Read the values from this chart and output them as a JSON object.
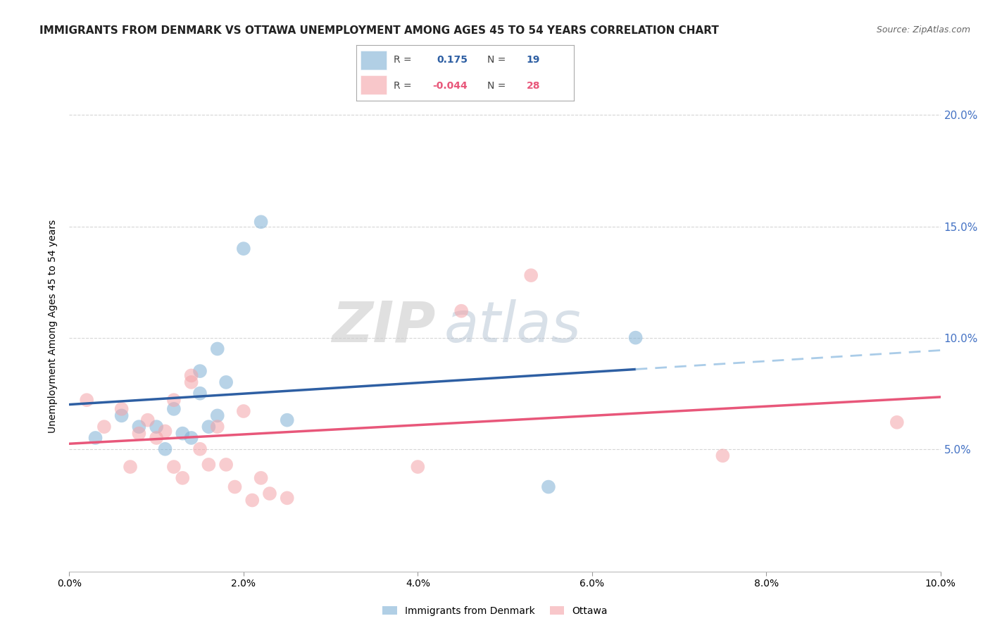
{
  "title": "IMMIGRANTS FROM DENMARK VS OTTAWA UNEMPLOYMENT AMONG AGES 45 TO 54 YEARS CORRELATION CHART",
  "source": "Source: ZipAtlas.com",
  "ylabel": "Unemployment Among Ages 45 to 54 years",
  "xlim": [
    0.0,
    0.1
  ],
  "ylim": [
    -0.005,
    0.215
  ],
  "yticks": [
    0.05,
    0.1,
    0.15,
    0.2
  ],
  "ytick_labels": [
    "5.0%",
    "10.0%",
    "15.0%",
    "20.0%"
  ],
  "xticks": [
    0.0,
    0.02,
    0.04,
    0.06,
    0.08,
    0.1
  ],
  "xtick_labels": [
    "0.0%",
    "2.0%",
    "4.0%",
    "6.0%",
    "8.0%",
    "10.0%"
  ],
  "blue_color": "#7EB0D5",
  "pink_color": "#F4A3A8",
  "blue_line_color": "#2E5FA3",
  "pink_line_color": "#E8577A",
  "blue_dashed_color": "#AACCE8",
  "legend_R_blue": "0.175",
  "legend_N_blue": "19",
  "legend_R_pink": "-0.044",
  "legend_N_pink": "28",
  "legend_label_blue": "Immigrants from Denmark",
  "legend_label_pink": "Ottawa",
  "watermark_zip": "ZIP",
  "watermark_atlas": "atlas",
  "blue_scatter_x": [
    0.003,
    0.006,
    0.008,
    0.01,
    0.011,
    0.012,
    0.013,
    0.014,
    0.015,
    0.015,
    0.016,
    0.017,
    0.017,
    0.018,
    0.02,
    0.022,
    0.025,
    0.055,
    0.065
  ],
  "blue_scatter_y": [
    0.055,
    0.065,
    0.06,
    0.06,
    0.05,
    0.068,
    0.057,
    0.055,
    0.075,
    0.085,
    0.06,
    0.065,
    0.095,
    0.08,
    0.14,
    0.152,
    0.063,
    0.033,
    0.1
  ],
  "pink_scatter_x": [
    0.002,
    0.004,
    0.006,
    0.007,
    0.008,
    0.009,
    0.01,
    0.011,
    0.012,
    0.012,
    0.013,
    0.014,
    0.014,
    0.015,
    0.016,
    0.017,
    0.018,
    0.019,
    0.02,
    0.021,
    0.022,
    0.023,
    0.025,
    0.04,
    0.045,
    0.053,
    0.075,
    0.095
  ],
  "pink_scatter_y": [
    0.072,
    0.06,
    0.068,
    0.042,
    0.057,
    0.063,
    0.055,
    0.058,
    0.072,
    0.042,
    0.037,
    0.08,
    0.083,
    0.05,
    0.043,
    0.06,
    0.043,
    0.033,
    0.067,
    0.027,
    0.037,
    0.03,
    0.028,
    0.042,
    0.112,
    0.128,
    0.047,
    0.062
  ],
  "background_color": "#FFFFFF",
  "grid_color": "#CCCCCC",
  "title_fontsize": 11,
  "axis_fontsize": 10,
  "tick_fontsize": 10,
  "source_fontsize": 9,
  "right_tick_color": "#4472C4",
  "blue_line_x_solid_end": 0.065,
  "blue_line_x_dashed_end": 0.1,
  "pink_line_x_start": 0.0,
  "pink_line_x_end": 0.1
}
